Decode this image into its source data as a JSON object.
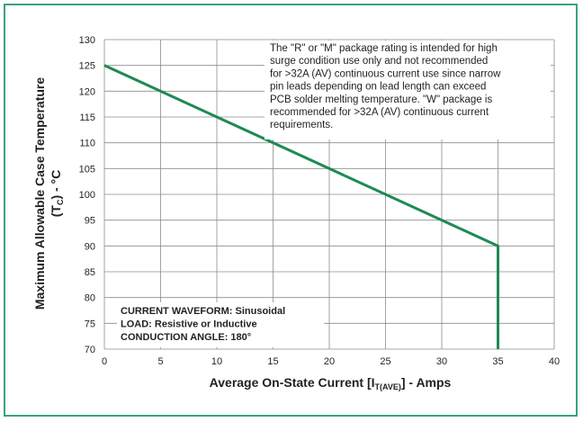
{
  "chart_data": {
    "type": "line",
    "xlabel_main": "Average On-State Current [I",
    "xlabel_sub": "T(AVE)",
    "xlabel_tail": "] - Amps",
    "ylabel_line1": "Maximum Allowable Case Temperature",
    "ylabel_line2_main": "(T",
    "ylabel_line2_sub": "C",
    "ylabel_line2_tail": ") - °C",
    "xlim": [
      0,
      40
    ],
    "ylim": [
      70,
      130
    ],
    "xticks": [
      0,
      5,
      10,
      15,
      20,
      25,
      30,
      35,
      40
    ],
    "yticks": [
      70,
      75,
      80,
      85,
      90,
      95,
      100,
      105,
      110,
      115,
      120,
      125,
      130
    ],
    "grid": true,
    "series": [
      {
        "x": [
          0,
          35,
          35
        ],
        "y": [
          125,
          90,
          70
        ],
        "color": "#1f8a54"
      }
    ],
    "annotation_lines": [
      "The \"R\" or \"M\" package rating is intended for high",
      "surge condition use only and not recommended",
      "for >32A (AV) continuous current use since narrow",
      "pin leads depending on lead length can exceed",
      "PCB solder melting temperature. \"W\" package is",
      "recommended for >32A (AV) continuous current",
      "requirements."
    ],
    "conditions": [
      "CURRENT WAVEFORM: Sinusoidal",
      "LOAD: Resistive or Inductive",
      "CONDUCTION ANGLE: 180°"
    ]
  },
  "colors": {
    "frame": "#3aa37a",
    "line": "#1f8a54",
    "grid": "#8c8c8c"
  }
}
